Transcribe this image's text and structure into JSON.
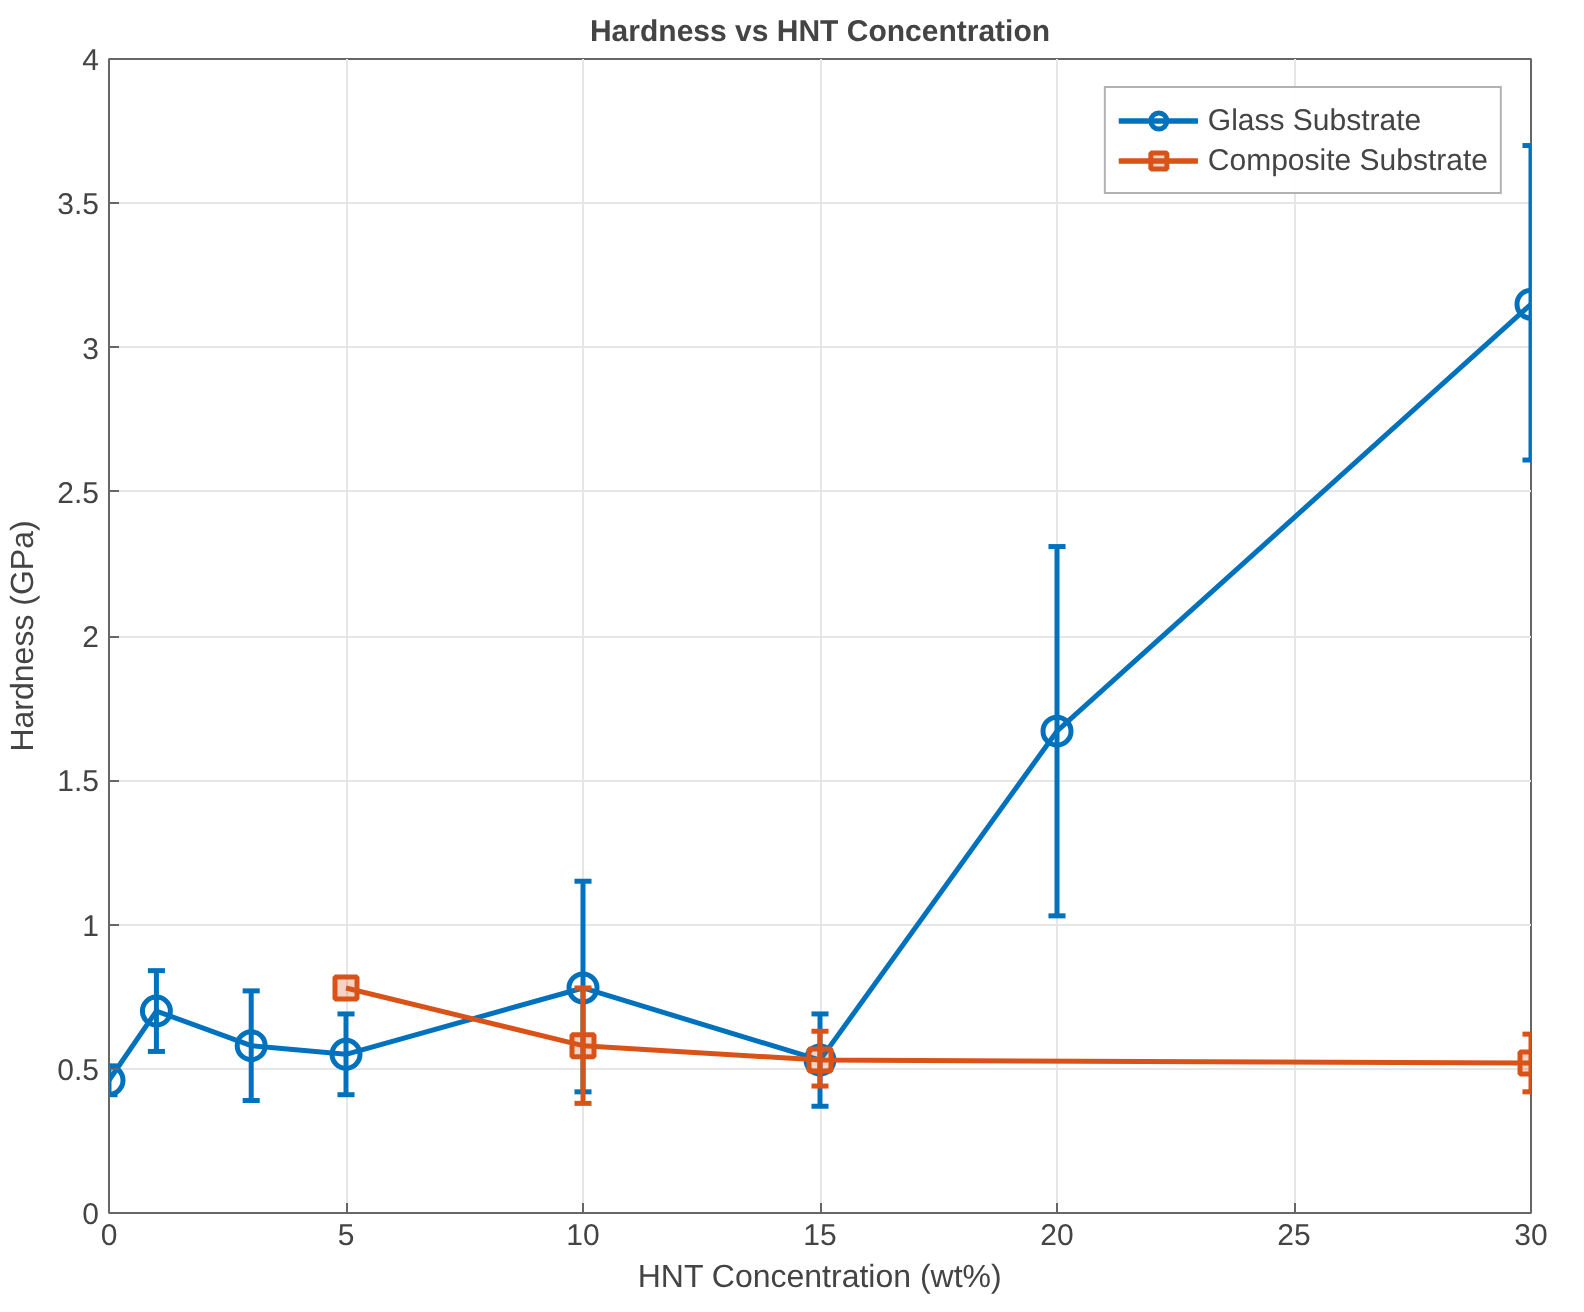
{
  "chart_data": {
    "type": "line",
    "title": "Hardness vs HNT Concentration",
    "xlabel": "HNT Concentration (wt%)",
    "ylabel": "Hardness (GPa)",
    "xlim": [
      0,
      30
    ],
    "xticks": [
      0,
      5,
      10,
      15,
      20,
      25,
      30
    ],
    "ylim": [
      0,
      4
    ],
    "yticks": [
      0,
      0.5,
      1,
      1.5,
      2,
      2.5,
      3,
      3.5,
      4
    ],
    "grid": true,
    "legend": "top right",
    "line_style": "solid",
    "series": [
      {
        "name": "Glass Substrate",
        "color": "#0072bd",
        "marker": "circle",
        "x": [
          0,
          1,
          3,
          5,
          10,
          15,
          20,
          30
        ],
        "values": [
          0.46,
          0.7,
          0.58,
          0.55,
          0.78,
          0.53,
          1.67,
          3.15
        ],
        "errors": [
          [
            0.41,
            0.51
          ],
          [
            0.56,
            0.84
          ],
          [
            0.39,
            0.77
          ],
          [
            0.41,
            0.69
          ],
          [
            0.42,
            1.15
          ],
          [
            0.37,
            0.69
          ],
          [
            1.03,
            2.31
          ],
          [
            2.61,
            3.7
          ]
        ]
      },
      {
        "name": "Composite Substrate",
        "color": "#d95319",
        "marker": "square",
        "x": [
          5,
          10,
          15,
          30
        ],
        "values": [
          0.78,
          0.58,
          0.53,
          0.52
        ],
        "errors": [
          null,
          [
            0.38,
            0.78
          ],
          [
            0.44,
            0.63
          ],
          [
            0.42,
            0.62
          ]
        ]
      }
    ]
  }
}
